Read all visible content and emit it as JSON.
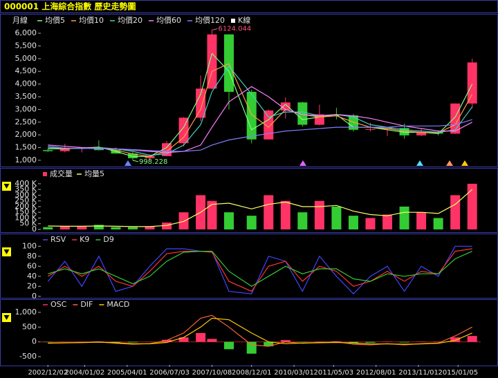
{
  "chart_data": [
    {
      "type": "candlestick",
      "title": "000001 上海綜合指數  歷史走勢圖",
      "period": "月線",
      "candle_label": "K線",
      "candle_color": "#ffffff",
      "up_color": "#ff3366",
      "down_color": "#33cc33",
      "x": [
        0,
        6,
        12,
        18,
        24,
        30,
        36,
        42,
        48,
        54,
        58,
        64,
        72,
        78,
        84,
        90,
        96,
        102,
        108,
        114,
        120,
        126,
        132,
        138,
        144,
        150
      ],
      "xlim": [
        -3,
        153
      ],
      "open": [
        1400,
        1357,
        1487,
        1497,
        1399,
        1266,
        1080,
        1161,
        1672,
        2675,
        3820,
        5954,
        3693,
        1820,
        2959,
        3277,
        2398,
        2808,
        2762,
        2199,
        2225,
        2269,
        1979,
        2116,
        2048,
        3234
      ],
      "high": [
        1450,
        1649,
        1500,
        1783,
        1500,
        1328,
        1223,
        1757,
        2698,
        4335,
        6124.044,
        5960,
        3786,
        3000,
        3478,
        3306,
        3186,
        3067,
        2826,
        2478,
        2300,
        2444,
        2270,
        2177,
        3239,
        5000
      ],
      "low": [
        1330,
        1311,
        1307,
        1390,
        1259,
        998.228,
        1004,
        1160,
        1541,
        2541,
        3800,
        2990,
        1664,
        1814,
        2639,
        2319,
        2382,
        2610,
        2134,
        2132,
        1949,
        1849,
        1950,
        1974,
        2040,
        3049
      ],
      "close": [
        1357,
        1487,
        1497,
        1399,
        1266,
        1080,
        1161,
        1672,
        2675,
        3820,
        5954,
        3693,
        1820,
        2959,
        3277,
        2398,
        2808,
        2762,
        2199,
        2225,
        2269,
        1979,
        2116,
        2048,
        3234,
        4850
      ],
      "series": [
        {
          "name": "均價5",
          "color": "#80ff80",
          "values": [
            1450,
            1450,
            1480,
            1520,
            1350,
            1150,
            1150,
            1500,
            2300,
            3600,
            5200,
            4500,
            2200,
            2600,
            3200,
            2600,
            2700,
            2800,
            2300,
            2300,
            2200,
            2100,
            2100,
            2050,
            2700,
            4000
          ]
        },
        {
          "name": "均價10",
          "color": "#ffa040",
          "values": [
            1500,
            1460,
            1470,
            1500,
            1400,
            1250,
            1150,
            1350,
            1900,
            3000,
            4500,
            4800,
            2800,
            2300,
            3000,
            2800,
            2700,
            2750,
            2500,
            2300,
            2250,
            2150,
            2100,
            2080,
            2400,
            3600
          ]
        },
        {
          "name": "均價20",
          "color": "#40d0c0",
          "values": [
            1550,
            1480,
            1460,
            1500,
            1450,
            1350,
            1200,
            1250,
            1600,
            2400,
            3700,
            4700,
            3600,
            2700,
            2900,
            2900,
            2750,
            2800,
            2700,
            2400,
            2300,
            2200,
            2150,
            2100,
            2200,
            3100
          ]
        },
        {
          "name": "均價60",
          "color": "#ff80ff",
          "values": [
            1600,
            1550,
            1500,
            1480,
            1450,
            1400,
            1350,
            1300,
            1350,
            1600,
            2300,
            3300,
            3900,
            3500,
            3000,
            2800,
            2750,
            2800,
            2750,
            2650,
            2500,
            2350,
            2250,
            2150,
            2150,
            2500
          ]
        },
        {
          "name": "均價120",
          "color": "#8080ff",
          "values": [
            1500,
            1480,
            1470,
            1460,
            1450,
            1420,
            1380,
            1350,
            1350,
            1400,
            1600,
            1800,
            1950,
            2050,
            2150,
            2200,
            2250,
            2300,
            2300,
            2300,
            2300,
            2350,
            2350,
            2350,
            2400,
            2600
          ]
        }
      ],
      "ylim": [
        780,
        6220
      ],
      "yticks": [
        {
          "value": 1000,
          "label": "1,000"
        },
        {
          "value": 1500,
          "label": "1,500"
        },
        {
          "value": 2000,
          "label": "2,000"
        },
        {
          "value": 2500,
          "label": "2,500"
        },
        {
          "value": 3000,
          "label": "3,000"
        },
        {
          "value": 3500,
          "label": "3,500"
        },
        {
          "value": 4000,
          "label": "4,000"
        },
        {
          "value": 4500,
          "label": "4,500"
        },
        {
          "value": 5000,
          "label": "5,000"
        },
        {
          "value": 5500,
          "label": "5,500"
        },
        {
          "value": 6000,
          "label": "6,000"
        }
      ],
      "annotations": [
        {
          "label": "6124.044",
          "x": 58,
          "y": 6124.044,
          "color": "#ff5080"
        },
        {
          "label": "998.228",
          "x": 30,
          "y": 998.228,
          "color": "#80ff80"
        }
      ]
    },
    {
      "type": "volume",
      "up_color": "#ff3366",
      "down_color": "#33cc33",
      "x": [
        0,
        6,
        12,
        18,
        24,
        30,
        36,
        42,
        48,
        54,
        58,
        64,
        72,
        78,
        84,
        90,
        96,
        102,
        108,
        114,
        120,
        126,
        132,
        138,
        144,
        150
      ],
      "xlim": [
        -3,
        153
      ],
      "bar_name": "成交量",
      "bar_color": "#ff3366",
      "values": [
        20,
        30,
        25,
        40,
        20,
        20,
        25,
        60,
        150,
        300,
        250,
        150,
        120,
        300,
        250,
        150,
        250,
        200,
        120,
        100,
        130,
        200,
        150,
        100,
        300,
        400
      ],
      "series": [
        {
          "name": "均量5",
          "color": "#ffff66",
          "values": [
            30,
            28,
            28,
            30,
            28,
            25,
            25,
            35,
            70,
            150,
            220,
            230,
            180,
            220,
            240,
            200,
            200,
            210,
            160,
            130,
            120,
            150,
            150,
            140,
            220,
            350
          ]
        }
      ],
      "ylim": [
        0,
        448
      ],
      "yticks": [
        0,
        {
          "value": 50,
          "label": "50 K"
        },
        {
          "value": 100,
          "label": "100 K"
        },
        {
          "value": 150,
          "label": "150 K"
        },
        {
          "value": 200,
          "label": "200 K"
        },
        {
          "value": 250,
          "label": "250 K"
        },
        {
          "value": 300,
          "label": "300 K"
        },
        {
          "value": 350,
          "label": "350 K"
        },
        {
          "value": 400,
          "label": "400 K"
        }
      ]
    },
    {
      "type": "line",
      "x": [
        0,
        6,
        12,
        18,
        24,
        30,
        36,
        42,
        48,
        54,
        58,
        64,
        72,
        78,
        84,
        90,
        96,
        102,
        108,
        114,
        120,
        126,
        132,
        138,
        144,
        150
      ],
      "xlim": [
        -3,
        153
      ],
      "series": [
        {
          "name": "RSV",
          "color": "#4444ff",
          "values": [
            30,
            70,
            20,
            80,
            10,
            20,
            60,
            95,
            95,
            90,
            90,
            10,
            5,
            80,
            70,
            10,
            80,
            40,
            5,
            40,
            60,
            10,
            60,
            40,
            100,
            100
          ]
        },
        {
          "name": "K9",
          "color": "#ff3333",
          "values": [
            40,
            60,
            40,
            60,
            30,
            20,
            50,
            85,
            90,
            90,
            88,
            30,
            10,
            60,
            70,
            30,
            60,
            50,
            20,
            30,
            50,
            30,
            50,
            45,
            90,
            95
          ]
        },
        {
          "name": "D9",
          "color": "#33cc33",
          "values": [
            45,
            55,
            45,
            55,
            40,
            25,
            40,
            70,
            88,
            90,
            90,
            50,
            20,
            40,
            60,
            45,
            55,
            55,
            35,
            30,
            45,
            40,
            45,
            45,
            75,
            90
          ]
        }
      ],
      "ylim": [
        -3,
        106
      ],
      "yticks": [
        0,
        20,
        40,
        60,
        80,
        100
      ]
    },
    {
      "type": "macd",
      "x": [
        0,
        6,
        12,
        18,
        24,
        30,
        36,
        42,
        48,
        54,
        58,
        64,
        72,
        78,
        84,
        90,
        96,
        102,
        108,
        114,
        120,
        126,
        132,
        138,
        144,
        150
      ],
      "xlim": [
        -3,
        153
      ],
      "series": [
        {
          "name": "OSC",
          "kind": "bar",
          "color": "#ff3366",
          "negative_color": "#33cc33",
          "values": [
            -10,
            5,
            5,
            10,
            -20,
            -20,
            5,
            70,
            150,
            300,
            100,
            -250,
            -400,
            -150,
            60,
            -10,
            10,
            20,
            -40,
            -30,
            10,
            -20,
            10,
            10,
            150,
            200
          ]
        },
        {
          "name": "DIF",
          "color": "#ff6633",
          "values": [
            -50,
            -30,
            -20,
            0,
            -50,
            -80,
            -60,
            50,
            300,
            800,
            900,
            500,
            -100,
            -150,
            0,
            -50,
            -20,
            0,
            -80,
            -100,
            -60,
            -100,
            -60,
            -40,
            200,
            500
          ]
        },
        {
          "name": "MACD",
          "color": "#ffcc00",
          "values": [
            -40,
            -35,
            -25,
            -10,
            -30,
            -60,
            -65,
            -20,
            150,
            500,
            800,
            750,
            300,
            0,
            -60,
            -40,
            -30,
            -20,
            -40,
            -70,
            -70,
            -80,
            -70,
            -50,
            50,
            300
          ]
        }
      ],
      "ylim": [
        -780,
        1140
      ],
      "yticks": [
        -500,
        0,
        500,
        {
          "value": 1000,
          "label": "1,000"
        }
      ],
      "xticks": [
        {
          "value": 0,
          "label": "2002/12/02"
        },
        {
          "value": 13,
          "label": "2004/01/02"
        },
        {
          "value": 28,
          "label": "2005/04/01"
        },
        {
          "value": 43,
          "label": "2006/07/03"
        },
        {
          "value": 58,
          "label": "2007/10/08"
        },
        {
          "value": 72,
          "label": "2008/12/01"
        },
        {
          "value": 87,
          "label": "2010/03/01"
        },
        {
          "value": 101,
          "label": "2011/05/03"
        },
        {
          "value": 116,
          "label": "2012/08/01"
        },
        {
          "value": 131,
          "label": "2013/11/01"
        },
        {
          "value": 145,
          "label": "2015/01/05"
        }
      ]
    }
  ]
}
